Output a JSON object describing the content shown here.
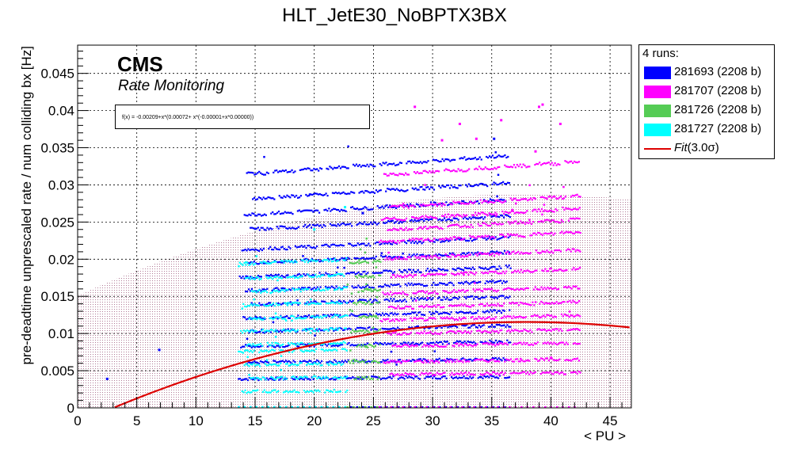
{
  "colors": {
    "run1": "#0000ff",
    "run2": "#ff00ff",
    "run3": "#55cc55",
    "run4": "#00ffff",
    "fit": "#dd0000",
    "band": "#c99ab0"
  },
  "chart_data": {
    "type": "scatter",
    "title": "HLT_JetE30_NoBPTX3BX",
    "xlabel": "< PU >",
    "ylabel": "pre-deadtime unprescaled rate / num colliding bx [Hz]",
    "xlim": [
      0,
      46.8
    ],
    "ylim": [
      0,
      0.0488
    ],
    "x_ticks": [
      "0",
      "5",
      "10",
      "15",
      "20",
      "25",
      "30",
      "35",
      "40",
      "45"
    ],
    "y_ticks": [
      "0",
      "0.005",
      "0.01",
      "0.015",
      "0.02",
      "0.025",
      "0.03",
      "0.035",
      "0.04",
      "0.045"
    ],
    "grid": true,
    "legend_position": "outside-right",
    "legend_header": "4 runs:",
    "series": [
      {
        "name": "281693 (2208 b)",
        "color_key": "run1",
        "x_range": [
          13.6,
          36.6
        ],
        "levels": [
          0.0039,
          0.0061,
          0.0083,
          0.0103,
          0.0121,
          0.0139,
          0.0158,
          0.0176,
          0.0195,
          0.0213,
          0.024,
          0.026,
          0.0281,
          0.0315
        ]
      },
      {
        "name": "281707 (2208 b)",
        "color_key": "run2",
        "x_range": [
          25.5,
          42.5
        ],
        "levels": [
          0.0045,
          0.0062,
          0.0083,
          0.01,
          0.0118,
          0.0135,
          0.0154,
          0.0177,
          0.0201,
          0.0224,
          0.024,
          0.0254,
          0.027,
          0.0314
        ]
      },
      {
        "name": "281726 (2208 b)",
        "color_key": "run3",
        "x_range": [
          22.8,
          25.6
        ],
        "levels": [
          0.004,
          0.0062,
          0.0083,
          0.0103,
          0.0122,
          0.0141,
          0.0158,
          0.0176,
          0.0196
        ]
      },
      {
        "name": "281727 (2208 b)",
        "color_key": "run4",
        "x_range": [
          13.6,
          22.8
        ],
        "levels": [
          0.0022,
          0.004,
          0.0058,
          0.0076,
          0.0085,
          0.0103,
          0.012,
          0.0138,
          0.0156,
          0.0174,
          0.0194
        ]
      }
    ],
    "outliers": [
      {
        "x": 2.5,
        "y": 0.0039,
        "series": 0
      },
      {
        "x": 6.9,
        "y": 0.0078,
        "series": 0
      },
      {
        "x": 28.5,
        "y": 0.0405,
        "series": 1
      },
      {
        "x": 30.8,
        "y": 0.036,
        "series": 1
      },
      {
        "x": 32.3,
        "y": 0.0382,
        "series": 1
      },
      {
        "x": 33.7,
        "y": 0.0362,
        "series": 1
      },
      {
        "x": 35.2,
        "y": 0.0362,
        "series": 0
      },
      {
        "x": 35.8,
        "y": 0.0387,
        "series": 1
      },
      {
        "x": 39.0,
        "y": 0.0405,
        "series": 1
      },
      {
        "x": 39.3,
        "y": 0.0408,
        "series": 1
      },
      {
        "x": 40.8,
        "y": 0.0382,
        "series": 1
      },
      {
        "x": 38.7,
        "y": 0.0345,
        "series": 1
      },
      {
        "x": 24.1,
        "y": 0.0262,
        "series": 0
      },
      {
        "x": 20.0,
        "y": 0.024,
        "series": 3
      },
      {
        "x": 22.6,
        "y": 0.027,
        "series": 3
      }
    ],
    "fit": {
      "name": "Fit(3.0σ)",
      "formula": "f(x) = -0.00209+x*(0.00072+ x*(-0.00001+x*0.00000))",
      "coefficients": [
        -0.00209,
        0.00072,
        -9.5e-06
      ],
      "x_range": [
        2.9,
        46.8
      ],
      "band_sigma": 0.0172
    },
    "annotations": {
      "cms": "CMS",
      "subtitle": "Rate Monitoring"
    }
  },
  "legend": {
    "header": "4 runs:",
    "entries": [
      "281693 (2208 b)",
      "281707 (2208 b)",
      "281726 (2208 b)",
      "281727 (2208 b)"
    ],
    "fit_label_prefix": "Fit",
    "fit_label_suffix": "(3.0σ)"
  }
}
